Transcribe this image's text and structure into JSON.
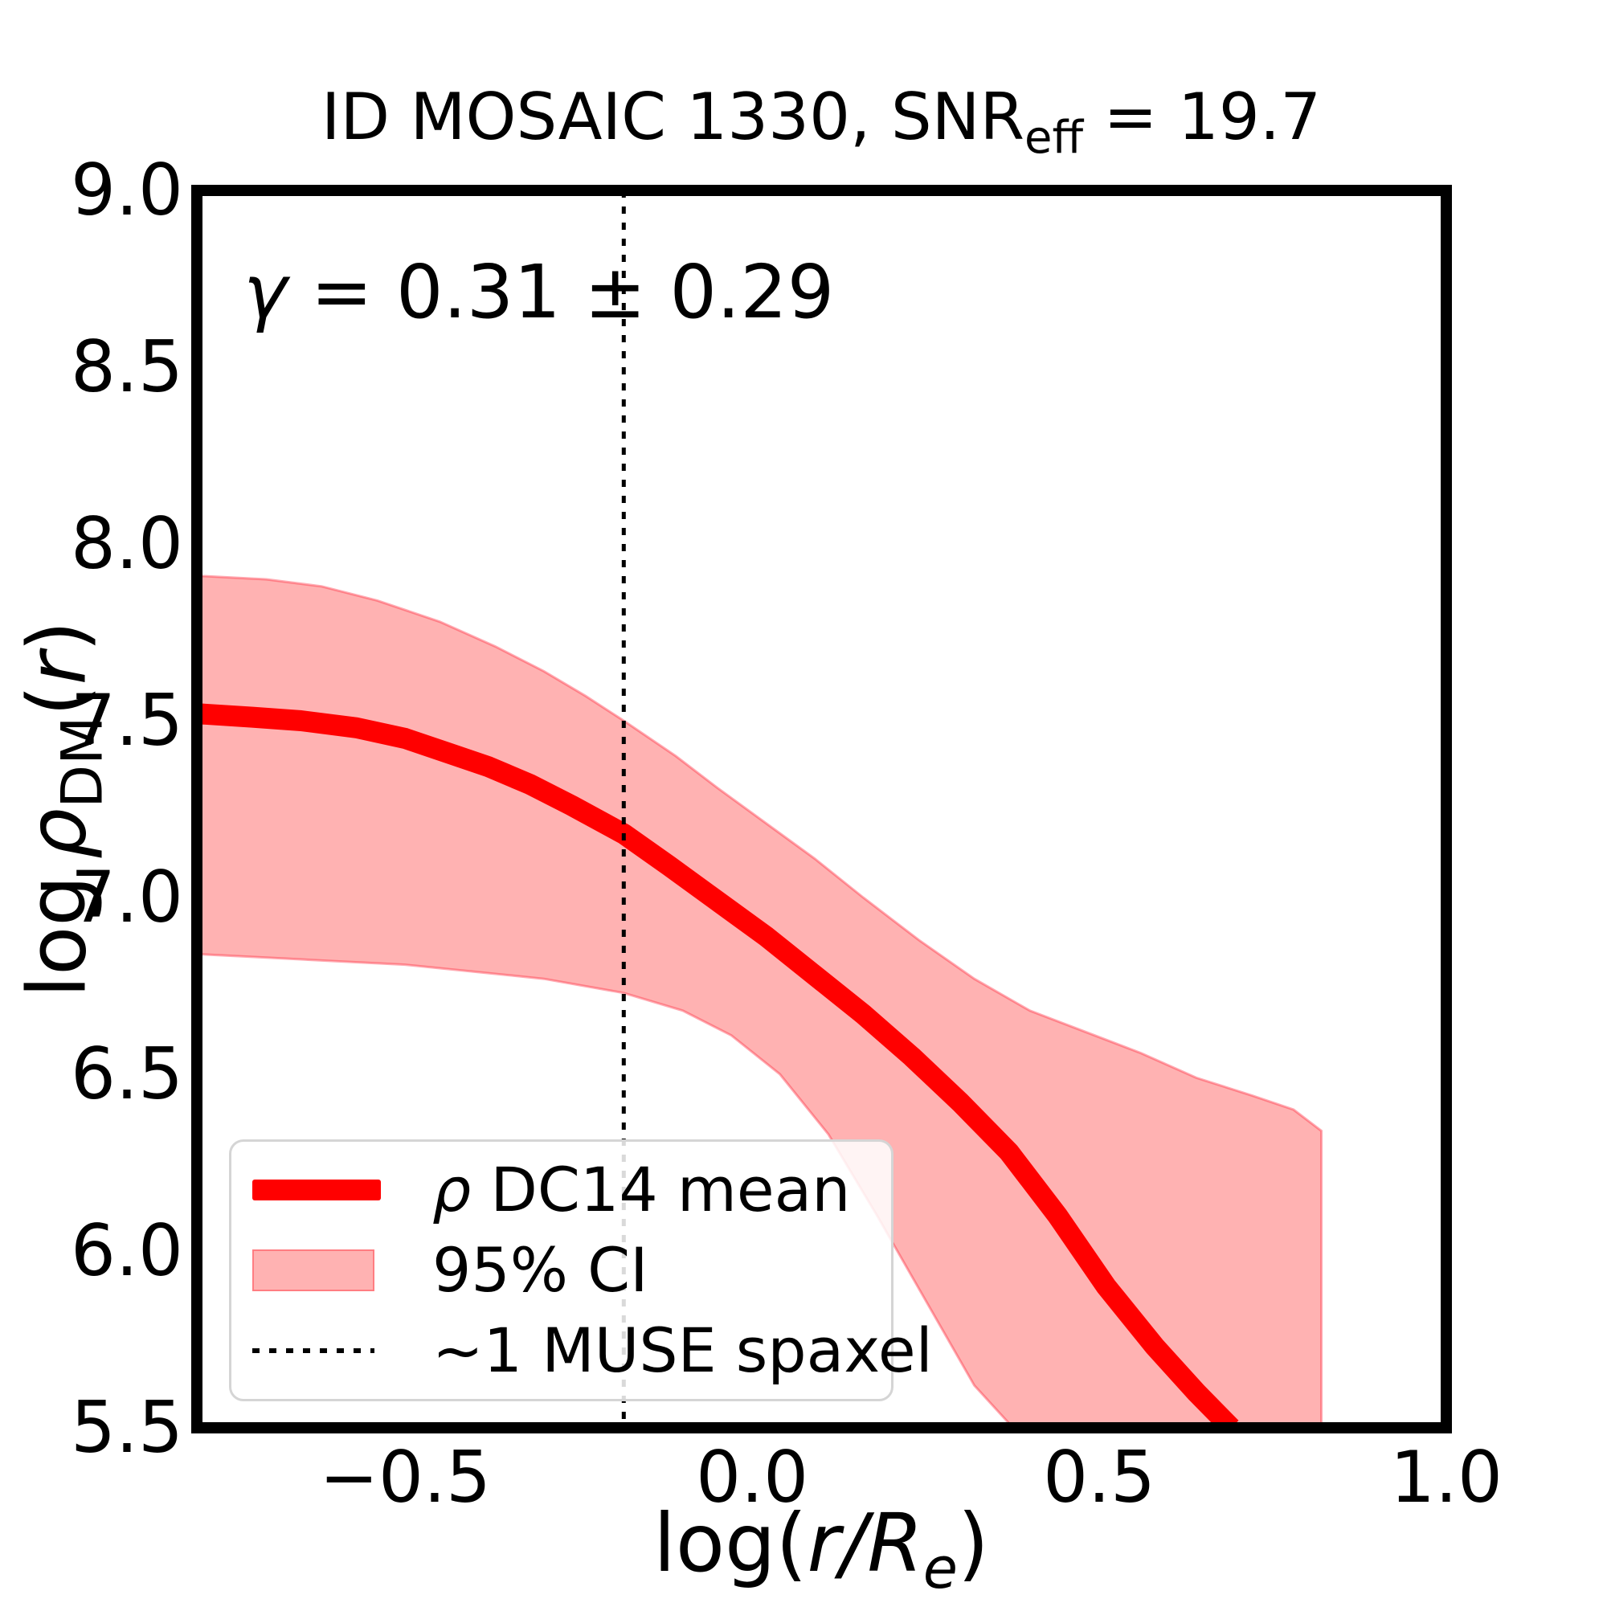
{
  "title": {
    "pre": "ID MOSAIC 1330, SNR",
    "sub": "eff",
    "post": " = 19.7"
  },
  "annotation": {
    "symbol": "γ",
    "rest": " = 0.31 ± 0.29"
  },
  "axes": {
    "xlabel": {
      "pre": "log(",
      "italic": "r/R",
      "sub": "e",
      "post": ")"
    },
    "ylabel": {
      "log": "log",
      "rho": "ρ",
      "sub": "DM",
      "lparen": "(",
      "r": "r",
      "rparen": ")"
    }
  },
  "legend": {
    "items": [
      {
        "symbol": "ρ",
        "rest": " DC14 mean",
        "swatch": "thick-red-line",
        "color": "#ff0000"
      },
      {
        "label": "95% CI",
        "swatch": "pink-patch",
        "color": "rgba(255,0,0,0.30)"
      },
      {
        "label": "~1 MUSE spaxel",
        "swatch": "dotted-black-line",
        "color": "#000000"
      }
    ]
  },
  "chart_data": {
    "type": "line",
    "title": "ID MOSAIC 1330, SNR_eff = 19.7",
    "xlabel": "log(r/R_e)",
    "ylabel": "log rho_DM(r)",
    "xlim": [
      -0.8,
      1.0
    ],
    "ylim": [
      5.5,
      9.0
    ],
    "grid": false,
    "legend_position": "lower left",
    "annotation": "γ = 0.31 ± 0.29",
    "muse_spaxel_x": -0.185,
    "frame_linewidth": 14,
    "mean_linewidth": 26,
    "colors": {
      "mean": "#ff0000",
      "band_fill": "rgba(255,0,0,0.30)",
      "band_edge": "rgba(255,40,60,0.40)",
      "muse_line": "#000000"
    },
    "x_ticks": [
      -0.5,
      0.0,
      0.5,
      1.0
    ],
    "x_tick_labels": [
      "−0.5",
      "0.0",
      "0.5",
      "1.0"
    ],
    "y_ticks": [
      9.0,
      8.5,
      8.0,
      7.5,
      7.0,
      6.5,
      6.0,
      5.5
    ],
    "y_tick_labels": [
      "9.0",
      "8.5",
      "8.0",
      "7.5",
      "7.0",
      "6.5",
      "6.0",
      "5.5"
    ],
    "series": [
      {
        "name": "ρ DC14 mean",
        "x": [
          -0.8,
          -0.72,
          -0.65,
          -0.57,
          -0.5,
          -0.44,
          -0.38,
          -0.32,
          -0.26,
          -0.185,
          -0.12,
          -0.05,
          0.02,
          0.09,
          0.16,
          0.23,
          0.3,
          0.37,
          0.44,
          0.51,
          0.58,
          0.64,
          0.69
        ],
        "y": [
          7.52,
          7.51,
          7.5,
          7.48,
          7.45,
          7.41,
          7.37,
          7.32,
          7.26,
          7.18,
          7.09,
          6.99,
          6.89,
          6.78,
          6.67,
          6.55,
          6.42,
          6.28,
          6.1,
          5.9,
          5.73,
          5.6,
          5.5
        ]
      },
      {
        "name": "95% CI upper",
        "x": [
          -0.8,
          -0.7,
          -0.62,
          -0.54,
          -0.45,
          -0.37,
          -0.3,
          -0.24,
          -0.185,
          -0.11,
          -0.05,
          0.02,
          0.09,
          0.16,
          0.24,
          0.32,
          0.4,
          0.48,
          0.56,
          0.64,
          0.72,
          0.78,
          0.82
        ],
        "y": [
          7.91,
          7.9,
          7.88,
          7.84,
          7.78,
          7.71,
          7.64,
          7.57,
          7.5,
          7.4,
          7.31,
          7.21,
          7.11,
          7.0,
          6.88,
          6.77,
          6.68,
          6.62,
          6.56,
          6.49,
          6.44,
          6.4,
          6.34
        ]
      },
      {
        "name": "95% CI lower",
        "x": [
          -0.8,
          -0.7,
          -0.6,
          -0.5,
          -0.4,
          -0.3,
          -0.185,
          -0.1,
          -0.03,
          0.04,
          0.11,
          0.18,
          0.25,
          0.32,
          0.376
        ],
        "y": [
          6.84,
          6.83,
          6.82,
          6.81,
          6.79,
          6.77,
          6.73,
          6.68,
          6.61,
          6.5,
          6.33,
          6.1,
          5.86,
          5.62,
          5.5
        ]
      }
    ],
    "band_right_edge_x": 0.82
  }
}
